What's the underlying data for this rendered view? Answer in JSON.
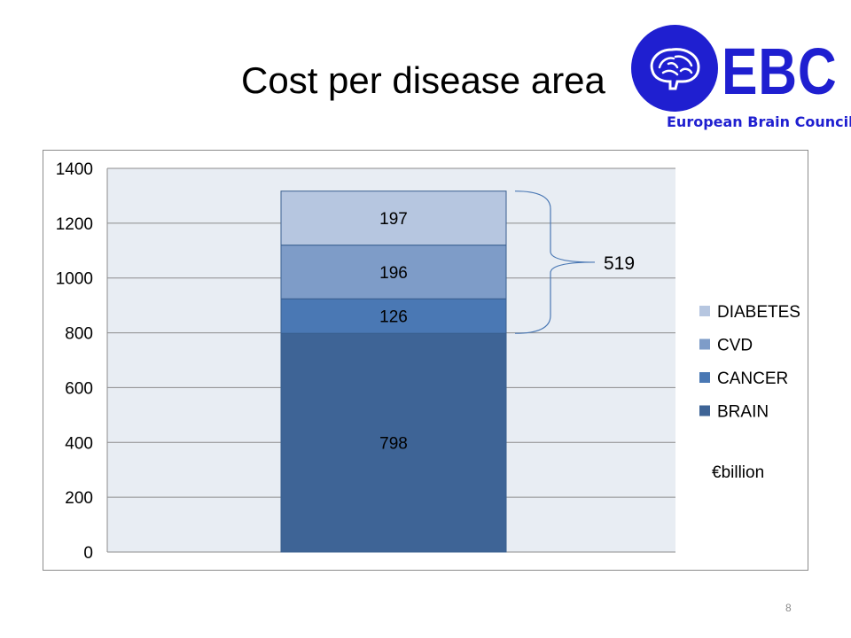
{
  "slide": {
    "title": "Cost per disease area",
    "page_number": "8"
  },
  "logo": {
    "text": "EBC",
    "subtitle": "European Brain Council",
    "brand_color": "#1f1fd0"
  },
  "chart_data": {
    "type": "bar",
    "stacked": true,
    "categories": [
      ""
    ],
    "series": [
      {
        "name": "BRAIN",
        "values": [
          798
        ],
        "color": "#3e6496"
      },
      {
        "name": "CANCER",
        "values": [
          126
        ],
        "color": "#4a78b4"
      },
      {
        "name": "CVD",
        "values": [
          196
        ],
        "color": "#7e9cc8"
      },
      {
        "name": "DIABETES",
        "values": [
          197
        ],
        "color": "#b6c6e0"
      }
    ],
    "ylim": [
      0,
      1400
    ],
    "yticks": [
      0,
      200,
      400,
      600,
      800,
      1000,
      1200,
      1400
    ],
    "grid": true,
    "plot_background": "#e8edf3",
    "legend_position": "right",
    "legend_order": [
      "DIABETES",
      "CVD",
      "CANCER",
      "BRAIN"
    ],
    "unit": "€billion",
    "annotation": {
      "text": "519",
      "spans_series": [
        "CANCER",
        "CVD",
        "DIABETES"
      ]
    }
  }
}
